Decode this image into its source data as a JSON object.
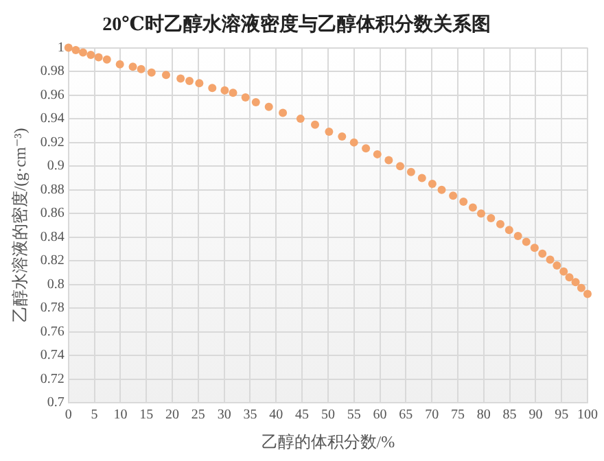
{
  "chart_data": {
    "type": "scatter",
    "title": "20℃时乙醇水溶液密度与乙醇体积分数关系图",
    "xlabel": "乙醇的体积分数/%",
    "ylabel": "乙醇水溶液的密度/(g·cm⁻³)",
    "x": [
      0,
      1.4,
      2.8,
      4.3,
      5.8,
      7.4,
      9.9,
      12.4,
      14,
      16,
      18.8,
      21.6,
      23.3,
      25.2,
      27.7,
      30.1,
      31.7,
      34.1,
      36.1,
      38.6,
      41.3,
      44.7,
      47.5,
      50.2,
      52.7,
      55,
      57.3,
      59.5,
      61.7,
      63.9,
      66,
      68.1,
      70.1,
      71.9,
      74.1,
      76.1,
      77.9,
      79.5,
      81.4,
      83.2,
      84.9,
      86.6,
      88.2,
      89.8,
      91.3,
      92.8,
      94.1,
      95.4,
      96.5,
      97.7,
      98.8,
      100
    ],
    "series": [
      {
        "color": "#f4a46c",
        "values": [
          1,
          0.998,
          0.996,
          0.994,
          0.992,
          0.99,
          0.986,
          0.984,
          0.982,
          0.979,
          0.977,
          0.974,
          0.972,
          0.97,
          0.966,
          0.964,
          0.962,
          0.958,
          0.954,
          0.95,
          0.945,
          0.94,
          0.935,
          0.929,
          0.925,
          0.92,
          0.915,
          0.91,
          0.905,
          0.9,
          0.895,
          0.89,
          0.885,
          0.88,
          0.875,
          0.87,
          0.865,
          0.86,
          0.856,
          0.851,
          0.846,
          0.841,
          0.836,
          0.831,
          0.826,
          0.821,
          0.816,
          0.811,
          0.806,
          0.802,
          0.797,
          0.792
        ]
      }
    ],
    "xlim": [
      0,
      100
    ],
    "xticks": [
      0,
      5,
      10,
      15,
      20,
      25,
      30,
      35,
      40,
      45,
      50,
      55,
      60,
      65,
      70,
      75,
      80,
      85,
      90,
      95,
      100
    ],
    "ylim": [
      0.7,
      1
    ],
    "yticks": [
      0.7,
      0.72,
      0.74,
      0.76,
      0.78,
      0.8,
      0.82,
      0.84,
      0.86,
      0.88,
      0.9,
      0.92,
      0.94,
      0.96,
      0.98,
      1
    ],
    "grid": true,
    "legend": false,
    "marker": "circle"
  }
}
